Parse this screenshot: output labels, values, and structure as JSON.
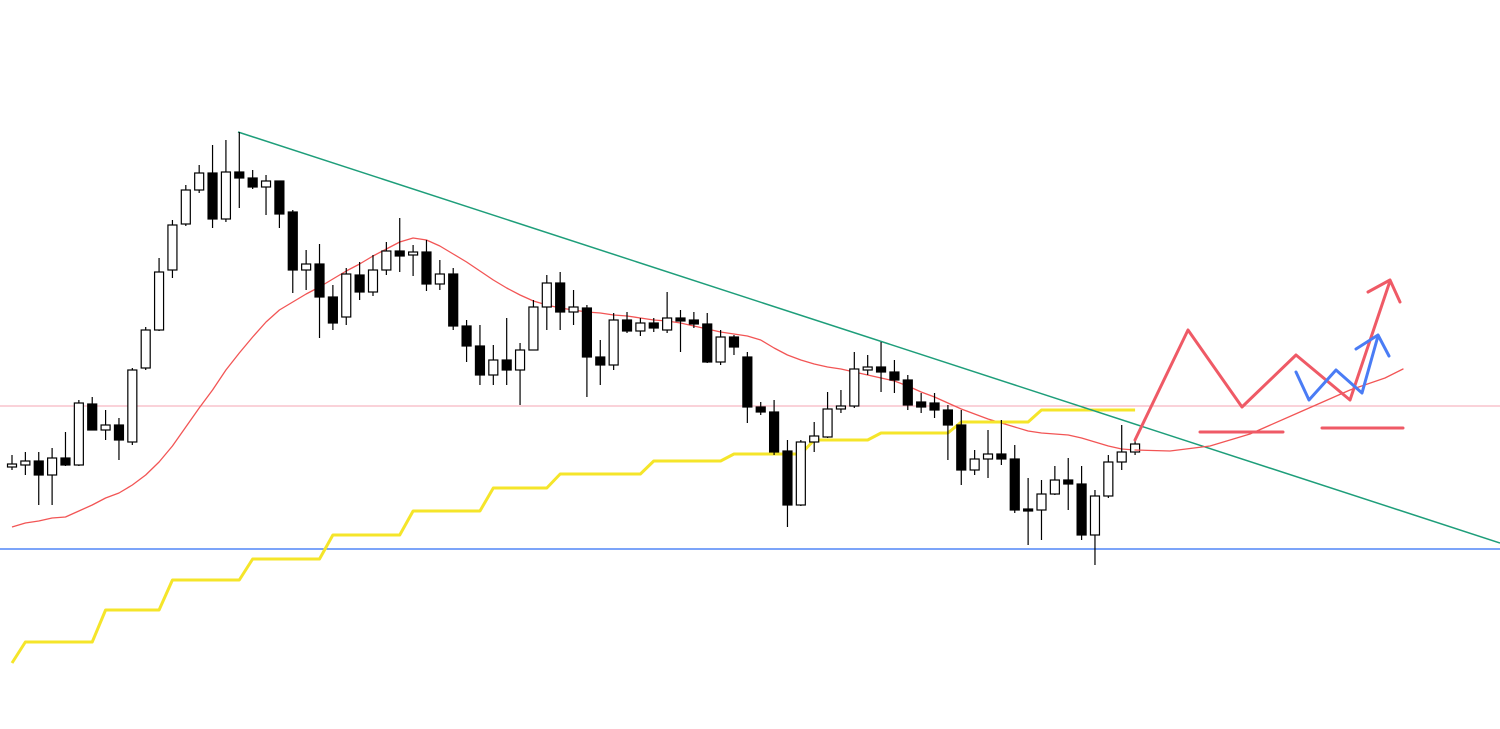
{
  "chart_data": {
    "type": "candlestick",
    "categories": [
      null,
      null,
      null,
      null,
      null,
      null,
      null,
      null,
      null,
      null,
      null,
      null,
      null,
      null,
      null,
      null,
      null,
      null,
      null,
      null,
      null,
      null,
      null,
      null,
      null,
      null,
      null,
      null,
      null,
      null,
      null,
      null,
      null,
      null,
      null,
      null,
      null,
      null,
      null,
      null,
      null,
      null,
      null,
      null,
      null,
      null,
      null,
      null,
      null,
      null,
      null,
      null,
      null,
      null,
      null,
      null,
      null,
      null,
      null,
      null,
      null,
      null,
      null,
      null,
      null,
      null,
      null,
      null,
      null,
      null,
      null,
      null,
      null,
      null,
      null,
      null,
      null,
      null,
      null,
      null,
      null,
      null,
      null,
      null,
      null
    ],
    "open": [
      262,
      264,
      268,
      254,
      271,
      264,
      325,
      299,
      304,
      287,
      361,
      399,
      459,
      505,
      539,
      556,
      510,
      557,
      551,
      542,
      548,
      517,
      459,
      465,
      432,
      412,
      454,
      437,
      459,
      478,
      474,
      477,
      445,
      455,
      403,
      383,
      354,
      369,
      359,
      379,
      422,
      446,
      417,
      421,
      372,
      364,
      409,
      398,
      406,
      399,
      411,
      409,
      405,
      367,
      392,
      372,
      322,
      317,
      278,
      224,
      287,
      292,
      320,
      323,
      359,
      362,
      357,
      349,
      327,
      326,
      319,
      304,
      259,
      270,
      275,
      270,
      220,
      219,
      235,
      249,
      245,
      194,
      233,
      267,
      277
    ],
    "high": [
      274,
      277,
      277,
      281,
      297,
      329,
      332,
      319,
      311,
      361,
      402,
      471,
      509,
      544,
      564,
      584,
      589,
      597,
      559,
      554,
      548,
      519,
      479,
      485,
      444,
      461,
      467,
      474,
      487,
      511,
      484,
      489,
      469,
      461,
      409,
      404,
      384,
      411,
      386,
      429,
      454,
      457,
      439,
      424,
      389,
      416,
      417,
      411,
      411,
      437,
      419,
      417,
      416,
      399,
      394,
      377,
      327,
      329,
      289,
      289,
      307,
      337,
      339,
      377,
      374,
      387,
      369,
      354,
      336,
      336,
      324,
      319,
      279,
      299,
      309,
      284,
      251,
      249,
      263,
      271,
      263,
      239,
      274,
      304,
      291
    ],
    "low": [
      259,
      254,
      224,
      224,
      263,
      263,
      299,
      289,
      269,
      284,
      359,
      398,
      451,
      503,
      536,
      501,
      507,
      521,
      540,
      514,
      501,
      436,
      439,
      391,
      399,
      404,
      429,
      433,
      454,
      457,
      453,
      438,
      439,
      399,
      367,
      344,
      344,
      344,
      324,
      379,
      399,
      399,
      404,
      332,
      344,
      359,
      396,
      393,
      397,
      396,
      377,
      401,
      366,
      364,
      374,
      306,
      314,
      274,
      202,
      223,
      277,
      291,
      316,
      321,
      354,
      337,
      336,
      319,
      316,
      311,
      269,
      244,
      254,
      251,
      264,
      216,
      184,
      189,
      234,
      219,
      189,
      164,
      231,
      259,
      274
    ],
    "close": [
      265,
      268,
      254,
      271,
      264,
      326,
      299,
      304,
      289,
      359,
      399,
      457,
      504,
      539,
      556,
      510,
      557,
      551,
      542,
      548,
      515,
      459,
      465,
      432,
      406,
      455,
      437,
      459,
      478,
      473,
      477,
      445,
      455,
      403,
      383,
      354,
      369,
      359,
      379,
      422,
      446,
      417,
      422,
      372,
      364,
      409,
      398,
      406,
      401,
      411,
      408,
      405,
      367,
      392,
      382,
      322,
      317,
      277,
      224,
      287,
      293,
      320,
      323,
      360,
      362,
      357,
      349,
      324,
      322,
      319,
      304,
      259,
      270,
      275,
      270,
      219,
      218,
      235,
      249,
      245,
      194,
      233,
      267,
      277,
      285
    ],
    "up_color": "#ffffff",
    "down_color": "#000000",
    "wick_color": "#000000",
    "overlays": [
      {
        "color": "#f25555",
        "values": [
          202,
          206,
          208,
          211,
          212,
          218,
          224,
          231,
          236,
          244,
          254,
          267,
          283,
          302,
          321,
          339,
          359,
          376,
          392,
          407,
          419,
          427,
          435,
          442,
          450,
          458,
          465,
          473,
          480,
          487,
          491,
          489,
          483,
          475,
          467,
          458,
          449,
          441,
          434,
          428,
          424,
          421,
          419,
          417,
          416,
          414,
          413,
          411,
          409,
          408,
          406,
          403,
          400,
          397,
          395,
          393,
          389,
          381,
          374,
          369,
          365,
          362,
          360,
          357,
          354,
          351,
          348,
          343,
          337,
          332,
          326,
          320,
          315,
          310,
          306,
          302,
          298,
          296,
          295,
          294,
          291,
          287,
          283,
          280,
          279
        ]
      },
      {
        "color": "#f5e52a",
        "values": [
          66,
          87,
          87,
          87,
          87,
          87,
          87,
          119,
          119,
          119,
          119,
          119,
          149,
          149,
          149,
          149,
          149,
          149,
          170,
          170,
          170,
          170,
          170,
          170,
          194,
          194,
          194,
          194,
          194,
          194,
          218,
          218,
          218,
          218,
          218,
          218,
          241,
          241,
          241,
          241,
          241,
          255,
          255,
          255,
          255,
          255,
          255,
          255,
          268,
          268,
          268,
          268,
          268,
          268,
          275,
          275,
          275,
          275,
          275,
          275,
          289,
          289,
          289,
          289,
          289,
          296,
          296,
          296,
          296,
          296,
          296,
          307,
          307,
          307,
          307,
          307,
          307,
          319,
          319,
          319,
          319,
          319,
          319,
          319,
          319
        ]
      }
    ],
    "levels": [
      {
        "value": 323,
        "color": "#f7b6c2"
      },
      {
        "value": 180,
        "color": "#2f6ef5"
      }
    ],
    "ylim": [
      0,
      729
    ]
  }
}
